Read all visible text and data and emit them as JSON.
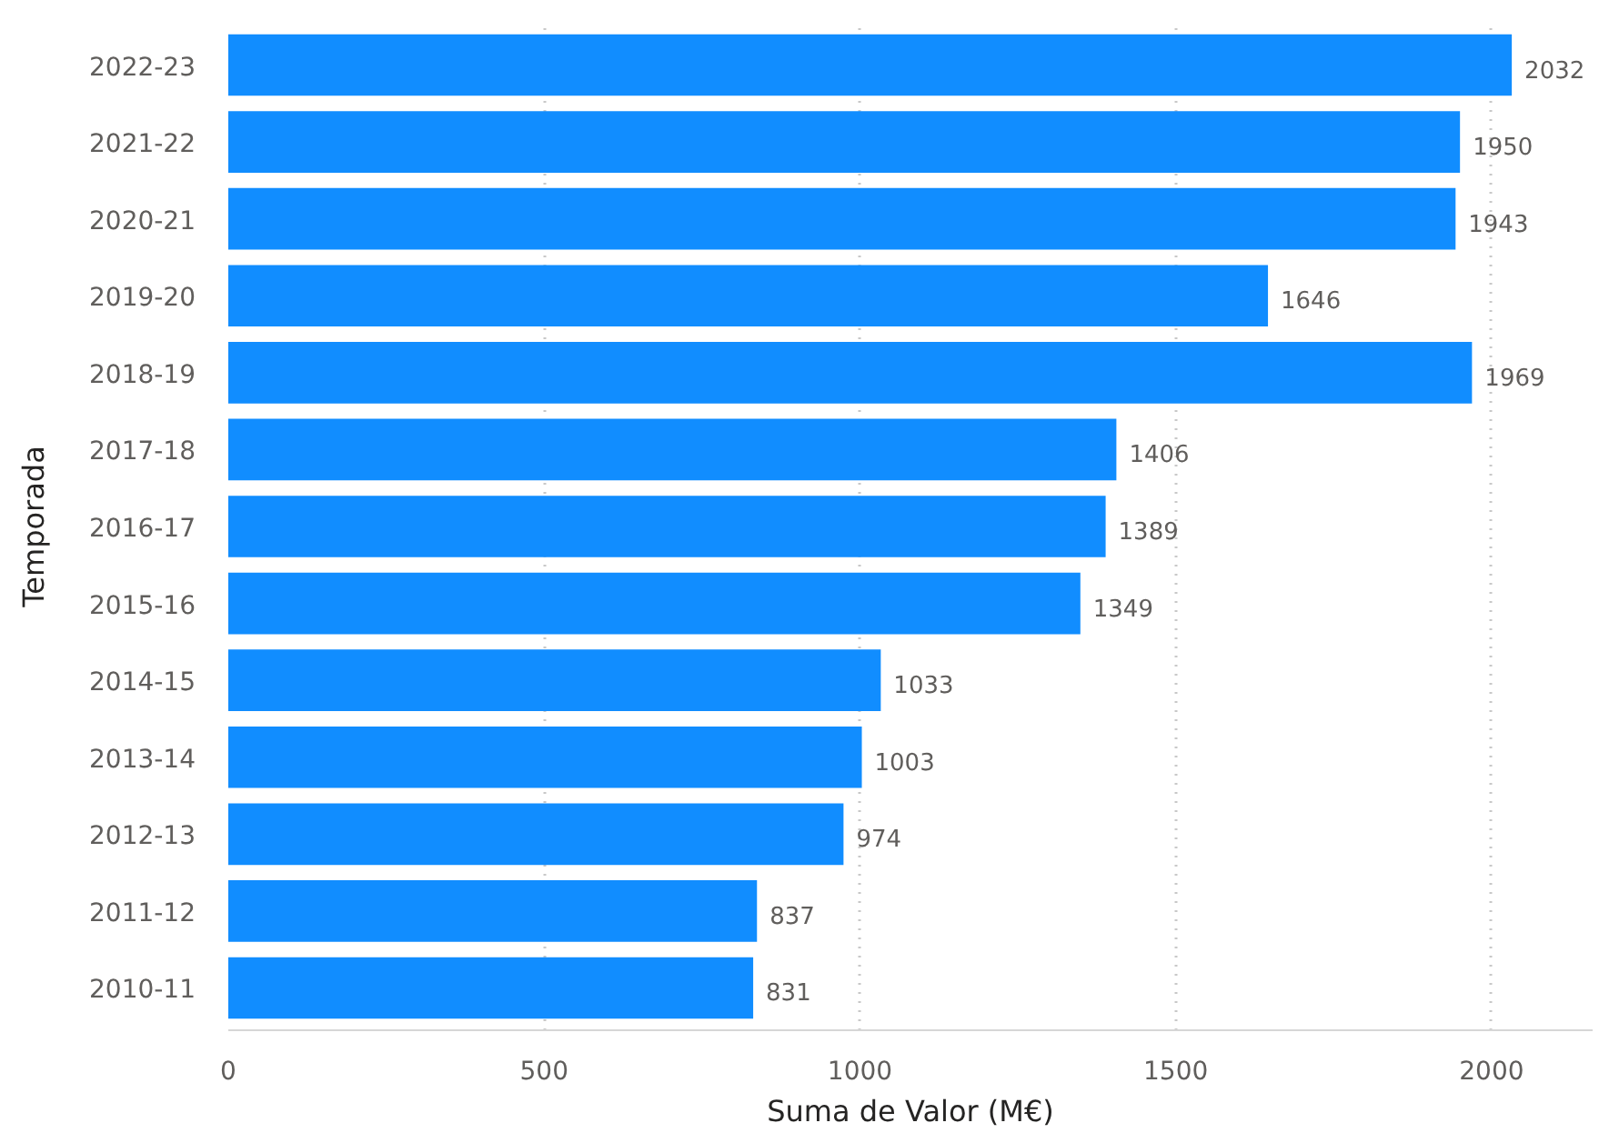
{
  "chart_data": {
    "type": "bar",
    "orientation": "horizontal",
    "xlabel": "Suma de Valor (M€)",
    "ylabel": "Temporada",
    "categories": [
      "2022-23",
      "2021-22",
      "2020-21",
      "2019-20",
      "2018-19",
      "2017-18",
      "2016-17",
      "2015-16",
      "2014-15",
      "2013-14",
      "2012-13",
      "2011-12",
      "2010-11"
    ],
    "values": [
      2032,
      1950,
      1943,
      1646,
      1969,
      1406,
      1389,
      1349,
      1033,
      1003,
      974,
      837,
      831
    ],
    "color": "#118dff",
    "xlim": [
      0,
      2160
    ],
    "xticks": [
      0,
      500,
      1000,
      1500,
      2000
    ],
    "grid": "x",
    "data_labels": true
  }
}
